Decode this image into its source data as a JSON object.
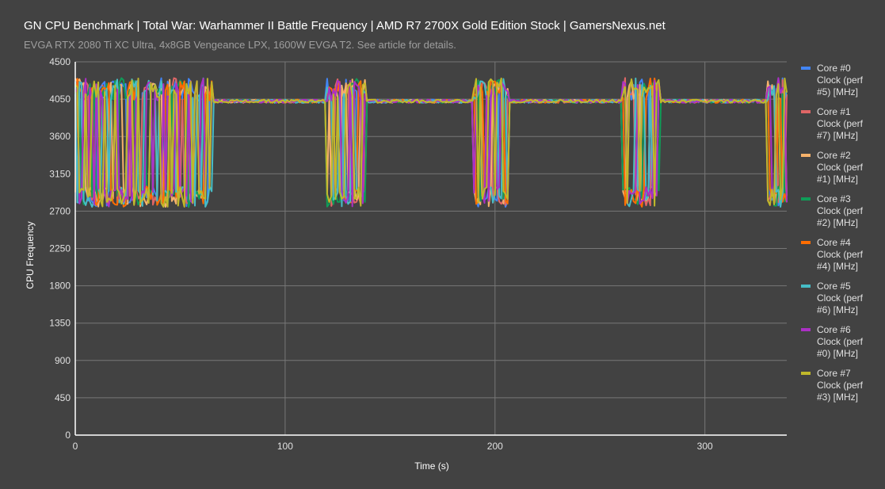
{
  "header": {
    "title": "GN CPU Benchmark | Total War: Warhammer II Battle Frequency | AMD R7 2700X Gold Edition Stock | GamersNexus.net",
    "subtitle": "EVGA RTX 2080 Ti XC Ultra, 4x8GB Vengeance LPX, 1600W EVGA T2. See article for details."
  },
  "chart_data": {
    "type": "line",
    "title": "GN CPU Benchmark | Total War: Warhammer II Battle Frequency | AMD R7 2700X Gold Edition Stock | GamersNexus.net",
    "subtitle": "EVGA RTX 2080 Ti XC Ultra, 4x8GB Vengeance LPX, 1600W EVGA T2. See article for details.",
    "xlabel": "Time (s)",
    "ylabel": "CPU Frequency",
    "xlim": [
      0,
      339
    ],
    "ylim": [
      0,
      4500
    ],
    "x_ticks": [
      0,
      100,
      200,
      300
    ],
    "y_ticks": [
      0,
      450,
      900,
      1350,
      1800,
      2250,
      2700,
      3150,
      3600,
      4050,
      4500
    ],
    "grid": true,
    "legend_position": "right",
    "baseline_mhz": 4025,
    "low_state_mhz": 2750,
    "burst_regions_s": [
      [
        0,
        65
      ],
      [
        120,
        138
      ],
      [
        190,
        206
      ],
      [
        261,
        278
      ],
      [
        330,
        339
      ]
    ],
    "series": [
      {
        "name": "Core #0 Clock (perf #5) [MHz]",
        "color": "#4285f4",
        "seed": 11
      },
      {
        "name": "Core #1 Clock (perf #7) [MHz]",
        "color": "#e06666",
        "seed": 23
      },
      {
        "name": "Core #2 Clock (perf #1) [MHz]",
        "color": "#f6b26b",
        "seed": 37
      },
      {
        "name": "Core #3 Clock (perf #2) [MHz]",
        "color": "#0f9d58",
        "seed": 41
      },
      {
        "name": "Core #4 Clock (perf #4) [MHz]",
        "color": "#ff6d01",
        "seed": 53
      },
      {
        "name": "Core #5 Clock (perf #6) [MHz]",
        "color": "#46bdc6",
        "seed": 67
      },
      {
        "name": "Core #6 Clock (perf #0) [MHz]",
        "color": "#ab30c4",
        "seed": 79
      },
      {
        "name": "Core #7 Clock (perf #3) [MHz]",
        "color": "#c0b82a",
        "seed": 97
      }
    ]
  },
  "legend": {
    "items": [
      {
        "line1": "Core #0",
        "line2": "Clock (perf",
        "line3": "#5) [MHz]",
        "color": "#4285f4"
      },
      {
        "line1": "Core #1",
        "line2": "Clock (perf",
        "line3": "#7) [MHz]",
        "color": "#e06666"
      },
      {
        "line1": "Core #2",
        "line2": "Clock (perf",
        "line3": "#1) [MHz]",
        "color": "#f6b26b"
      },
      {
        "line1": "Core #3",
        "line2": "Clock (perf",
        "line3": "#2) [MHz]",
        "color": "#0f9d58"
      },
      {
        "line1": "Core #4",
        "line2": "Clock (perf",
        "line3": "#4) [MHz]",
        "color": "#ff6d01"
      },
      {
        "line1": "Core #5",
        "line2": "Clock (perf",
        "line3": "#6) [MHz]",
        "color": "#46bdc6"
      },
      {
        "line1": "Core #6",
        "line2": "Clock (perf",
        "line3": "#0) [MHz]",
        "color": "#ab30c4"
      },
      {
        "line1": "Core #7",
        "line2": "Clock (perf",
        "line3": "#3) [MHz]",
        "color": "#c0b82a"
      }
    ]
  }
}
